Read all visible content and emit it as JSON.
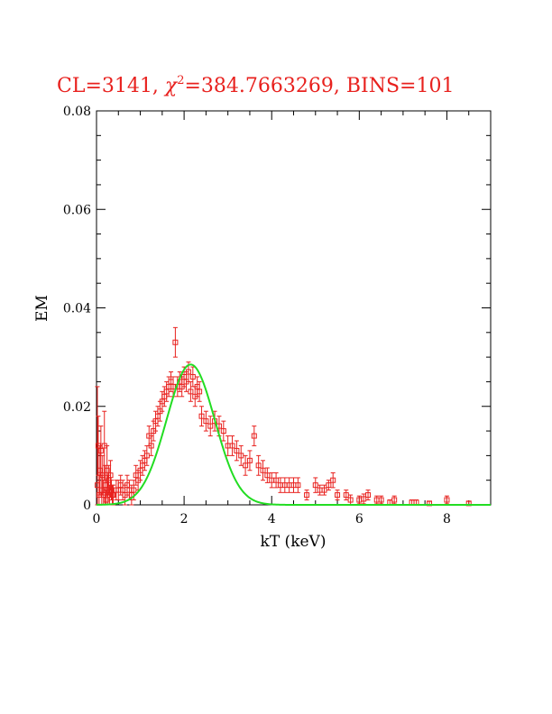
{
  "chart_data": {
    "type": "scatter",
    "title_prefix": "CL=3141, ",
    "title_chi": "χ",
    "title_sup": "2",
    "title_suffix": "=384.7663269, BINS=101",
    "xlabel": "kT (keV)",
    "ylabel": "EM",
    "xlim": [
      0,
      9
    ],
    "ylim": [
      0,
      0.08
    ],
    "xticks": [
      0,
      2,
      4,
      6,
      8
    ],
    "xtick_labels": [
      "0",
      "2",
      "4",
      "6",
      "8"
    ],
    "yticks": [
      0,
      0.02,
      0.04,
      0.06,
      0.08
    ],
    "ytick_labels": [
      "0",
      "0.02",
      "0.04",
      "0.06",
      "0.08"
    ],
    "colors": {
      "data": "#e8211e",
      "model": "#22dd22",
      "axes": "#000000"
    },
    "series": [
      {
        "kind": "points_with_errorbars",
        "x": [
          0.02,
          0.04,
          0.06,
          0.08,
          0.1,
          0.12,
          0.14,
          0.16,
          0.18,
          0.2,
          0.22,
          0.24,
          0.26,
          0.28,
          0.3,
          0.32,
          0.34,
          0.36,
          0.38,
          0.45,
          0.5,
          0.55,
          0.6,
          0.65,
          0.7,
          0.75,
          0.8,
          0.85,
          0.9,
          0.95,
          1.0,
          1.05,
          1.1,
          1.15,
          1.2,
          1.25,
          1.3,
          1.35,
          1.4,
          1.45,
          1.5,
          1.55,
          1.6,
          1.65,
          1.7,
          1.75,
          1.8,
          1.85,
          1.9,
          1.95,
          2.0,
          2.05,
          2.1,
          2.15,
          2.2,
          2.25,
          2.3,
          2.35,
          2.4,
          2.5,
          2.6,
          2.7,
          2.8,
          2.9,
          3.0,
          3.1,
          3.2,
          3.3,
          3.4,
          3.5,
          3.6,
          3.7,
          3.8,
          3.9,
          4.0,
          4.1,
          4.2,
          4.3,
          4.4,
          4.5,
          4.6,
          4.8,
          5.0,
          5.1,
          5.2,
          5.3,
          5.4,
          5.5,
          5.7,
          5.8,
          6.0,
          6.1,
          6.2,
          6.4,
          6.5,
          6.7,
          6.8,
          7.2,
          7.3,
          7.6,
          8.0,
          8.5
        ],
        "y": [
          0.004,
          0.012,
          0.002,
          0.007,
          0.011,
          0.003,
          0.006,
          0.002,
          0.012,
          0.004,
          0.001,
          0.007,
          0.003,
          0.005,
          0.002,
          0.006,
          0.003,
          0.002,
          0.002,
          0.003,
          0.003,
          0.004,
          0.003,
          0.002,
          0.004,
          0.003,
          0.002,
          0.003,
          0.006,
          0.005,
          0.007,
          0.008,
          0.009,
          0.01,
          0.014,
          0.012,
          0.015,
          0.017,
          0.018,
          0.019,
          0.021,
          0.022,
          0.023,
          0.024,
          0.025,
          0.024,
          0.033,
          0.024,
          0.025,
          0.024,
          0.026,
          0.025,
          0.027,
          0.023,
          0.026,
          0.022,
          0.024,
          0.023,
          0.018,
          0.017,
          0.016,
          0.017,
          0.016,
          0.015,
          0.012,
          0.012,
          0.011,
          0.01,
          0.008,
          0.009,
          0.014,
          0.008,
          0.007,
          0.006,
          0.005,
          0.005,
          0.004,
          0.004,
          0.004,
          0.004,
          0.004,
          0.002,
          0.004,
          0.003,
          0.003,
          0.004,
          0.005,
          0.002,
          0.002,
          0.001,
          0.001,
          0.0012,
          0.002,
          0.001,
          0.001,
          0.0005,
          0.001,
          0.0005,
          0.0005,
          0.0003,
          0.001,
          0.0003
        ],
        "yerr": [
          0.02,
          0.006,
          0.004,
          0.005,
          0.005,
          0.003,
          0.004,
          0.003,
          0.007,
          0.004,
          0.002,
          0.005,
          0.003,
          0.003,
          0.002,
          0.003,
          0.002,
          0.002,
          0.002,
          0.002,
          0.002,
          0.002,
          0.002,
          0.002,
          0.002,
          0.002,
          0.002,
          0.002,
          0.002,
          0.002,
          0.002,
          0.002,
          0.002,
          0.002,
          0.002,
          0.002,
          0.002,
          0.002,
          0.002,
          0.002,
          0.002,
          0.002,
          0.002,
          0.002,
          0.002,
          0.002,
          0.003,
          0.002,
          0.002,
          0.002,
          0.002,
          0.002,
          0.002,
          0.002,
          0.002,
          0.002,
          0.002,
          0.002,
          0.002,
          0.002,
          0.002,
          0.002,
          0.002,
          0.002,
          0.002,
          0.002,
          0.002,
          0.002,
          0.002,
          0.002,
          0.002,
          0.002,
          0.002,
          0.0015,
          0.0015,
          0.0015,
          0.0015,
          0.0015,
          0.0015,
          0.0015,
          0.0015,
          0.001,
          0.0015,
          0.001,
          0.001,
          0.001,
          0.0015,
          0.001,
          0.001,
          0.001,
          0.0008,
          0.001,
          0.001,
          0.0008,
          0.0008,
          0.0005,
          0.0008,
          0.0005,
          0.0005,
          0.0004,
          0.0008,
          0.0004
        ]
      },
      {
        "kind": "model_curve",
        "peak_x": 2.15,
        "peak_y": 0.0285,
        "sigma": 0.55
      }
    ]
  }
}
